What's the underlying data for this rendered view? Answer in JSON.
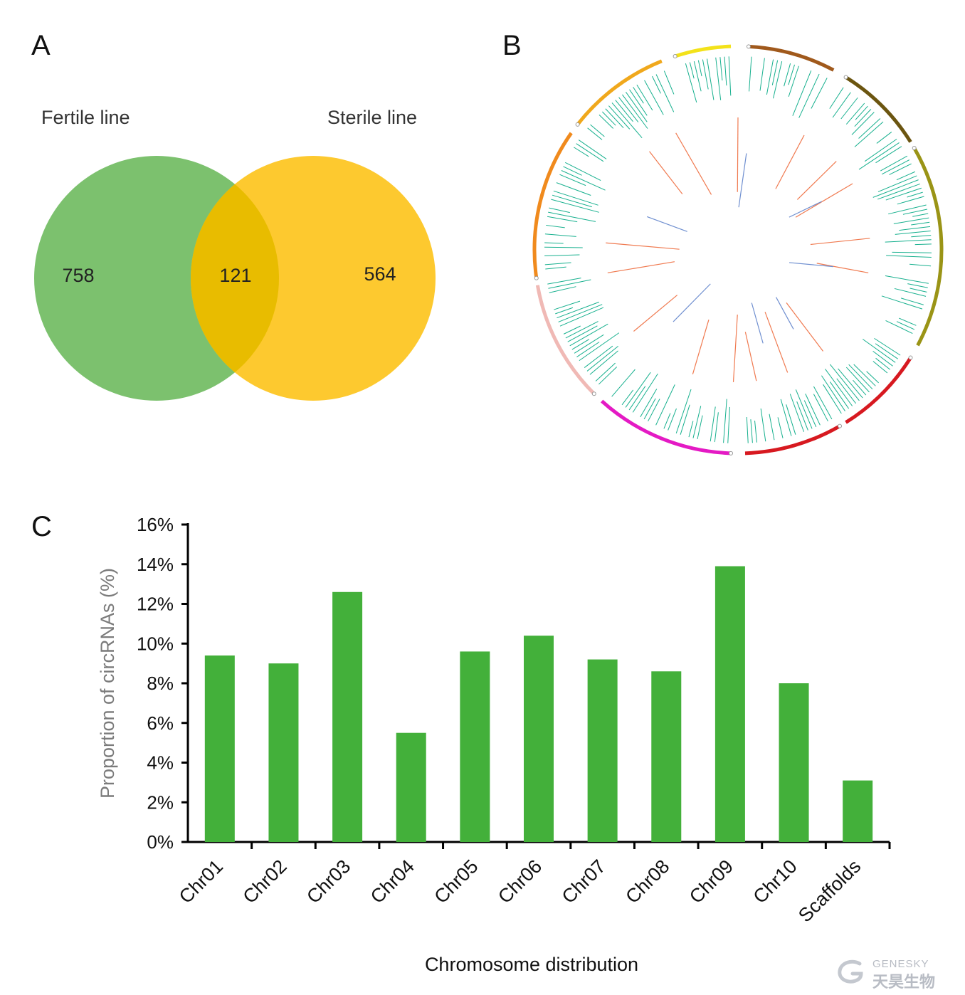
{
  "panels": {
    "a": "A",
    "b": "B",
    "c": "C"
  },
  "venn": {
    "left_label": "Fertile line",
    "right_label": "Sterile line",
    "left_only": "758",
    "overlap": "121",
    "right_only": "564",
    "colors": {
      "left": "#7cc16e",
      "right": "#fdc92f",
      "overlap": "#e8bc00"
    }
  },
  "circos": {
    "chromosome_colors": [
      "#a0591c",
      "#6b5510",
      "#9a9416",
      "#d71920",
      "#d71920",
      "#e41ac4",
      "#f0b9b5",
      "#f08a1d",
      "#f0a81c",
      "#f3e21a"
    ],
    "link_colors": {
      "inner_red": "#f07a50",
      "inner_blue": "#6f8fd0",
      "track": "#17b08e"
    }
  },
  "chart_data": {
    "type": "bar",
    "categories": [
      "Chr01",
      "Chr02",
      "Chr03",
      "Chr04",
      "Chr05",
      "Chr06",
      "Chr07",
      "Chr08",
      "Chr09",
      "Chr10",
      "Scaffolds"
    ],
    "values": [
      9.4,
      9.0,
      12.6,
      5.5,
      9.6,
      10.4,
      9.2,
      8.6,
      13.9,
      8.0,
      3.1
    ],
    "xlabel": "Chromosome distribution",
    "ylabel": "Proportion of circRNAs (%)",
    "ylim": [
      0,
      16
    ],
    "yticks": [
      "0%",
      "2%",
      "4%",
      "6%",
      "8%",
      "10%",
      "12%",
      "14%",
      "16%"
    ],
    "bar_color": "#43b03a",
    "ylabel_color": "#7b7b7b",
    "grid": false
  },
  "watermark": {
    "brand": "GENESKY",
    "cn": "天昊生物"
  }
}
